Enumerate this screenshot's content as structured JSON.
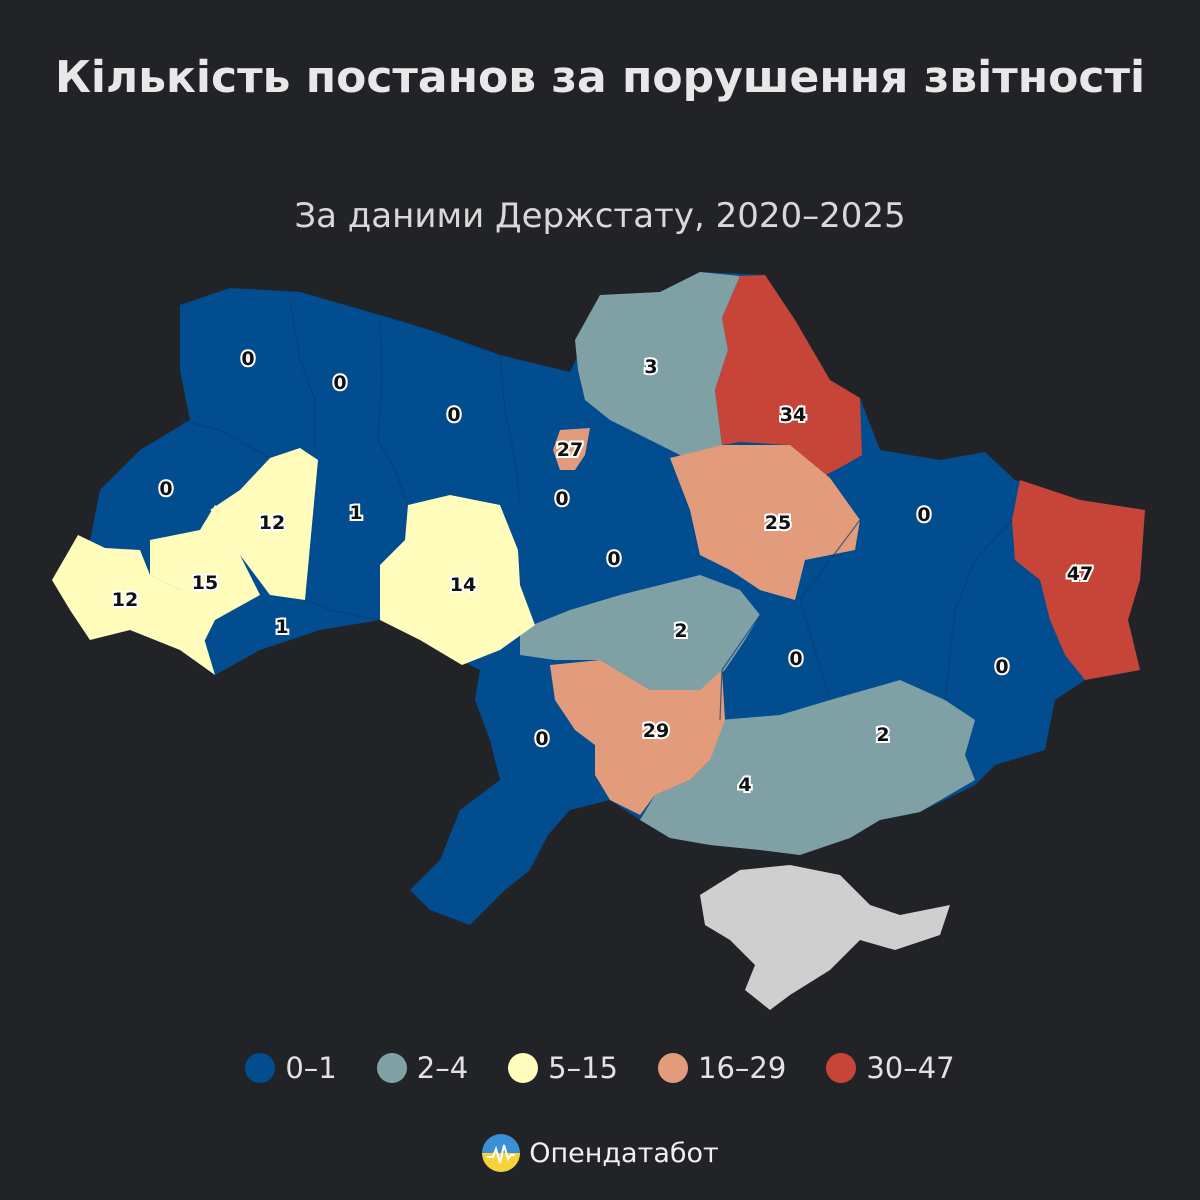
{
  "title": "Кількість постанов за порушення звітності",
  "subtitle": "За даними Держстату, 2020–2025",
  "legend": [
    {
      "label": "0–1",
      "color": "#014D8F"
    },
    {
      "label": "2–4",
      "color": "#7FA1A5"
    },
    {
      "label": "5–15",
      "color": "#FFFCBC"
    },
    {
      "label": "16–29",
      "color": "#E29C7B"
    },
    {
      "label": "30–47",
      "color": "#C64438"
    }
  ],
  "regions": [
    {
      "value": "0"
    },
    {
      "value": "0"
    },
    {
      "value": "0"
    },
    {
      "value": "3"
    },
    {
      "value": "34"
    },
    {
      "value": "0"
    },
    {
      "value": "27"
    },
    {
      "value": "0"
    },
    {
      "value": "12"
    },
    {
      "value": "1"
    },
    {
      "value": "12"
    },
    {
      "value": "15"
    },
    {
      "value": "1"
    },
    {
      "value": "14"
    },
    {
      "value": "0"
    },
    {
      "value": "25"
    },
    {
      "value": "0"
    },
    {
      "value": "47"
    },
    {
      "value": "2"
    },
    {
      "value": "0"
    },
    {
      "value": "0"
    },
    {
      "value": "0"
    },
    {
      "value": "29"
    },
    {
      "value": "2"
    },
    {
      "value": "4"
    }
  ],
  "brand": {
    "name": "Опендатабот"
  }
}
